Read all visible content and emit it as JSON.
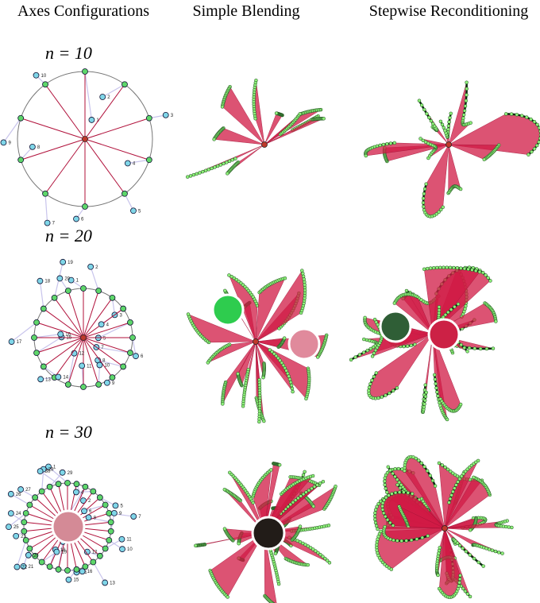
{
  "header": {
    "columns": [
      "Axes Configurations",
      "Simple Blending",
      "Stepwise Reconditioning"
    ]
  },
  "rows": [
    {
      "label": "n = 10",
      "axis_labels": [
        "1",
        "2",
        "3",
        "4",
        "5",
        "6",
        "7",
        "8",
        "9",
        "10"
      ]
    },
    {
      "label": "n = 20",
      "axis_labels": [
        "1",
        "2",
        "3",
        "4",
        "5",
        "6",
        "7",
        "8",
        "9",
        "10",
        "11",
        "12",
        "13",
        "14",
        "15",
        "16",
        "17",
        "18",
        "19",
        "20"
      ]
    },
    {
      "label": "n = 30",
      "axis_labels": [
        "1",
        "2",
        "3",
        "4",
        "5",
        "6",
        "7",
        "8",
        "9",
        "10",
        "11",
        "12",
        "13",
        "14",
        "15",
        "16",
        "17",
        "18",
        "19",
        "20",
        "21",
        "22",
        "23",
        "24",
        "25",
        "26",
        "27",
        "28",
        "29",
        "30"
      ]
    }
  ]
}
